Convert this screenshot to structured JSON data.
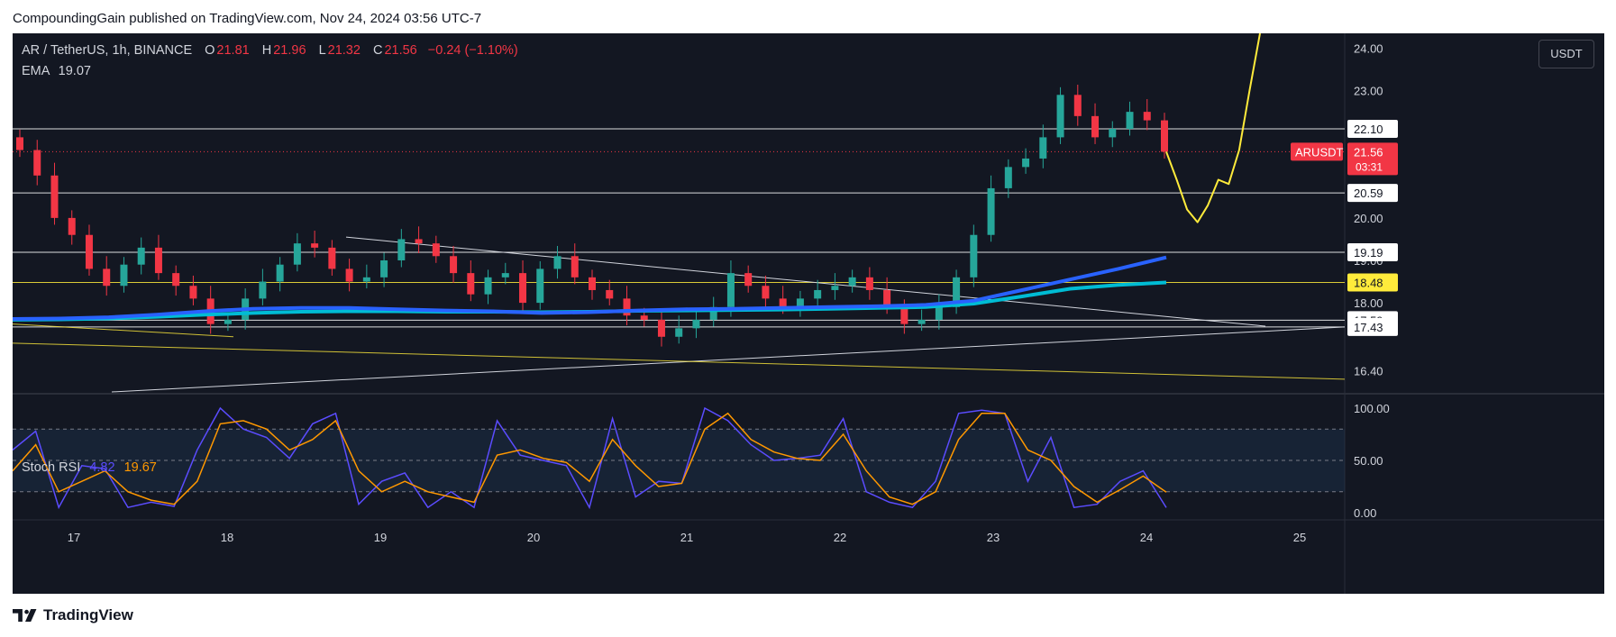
{
  "header": {
    "published": "CompoundingGain published on TradingView.com, Nov 24, 2024 03:56 UTC-7"
  },
  "legend": {
    "symbol": "AR / TetherUS, 1h, BINANCE",
    "o_label": "O",
    "o": "21.81",
    "h_label": "H",
    "h": "21.96",
    "l_label": "L",
    "l": "21.32",
    "c_label": "C",
    "c": "21.56",
    "change": "−0.24 (−1.10%)",
    "ema_label": "EMA",
    "ema_value": "19.07"
  },
  "rsi_legend": {
    "label": "Stoch RSI",
    "k": "4.82",
    "d": "19.67"
  },
  "currency_button": "USDT",
  "footer": {
    "brand": "TradingView"
  },
  "colors": {
    "bg": "#131722",
    "up": "#26a69a",
    "down": "#f23645",
    "ema_fast": "#2962ff",
    "ema_slow": "#00bcd4",
    "projection": "#ffeb3b",
    "stoch_k": "#5b4cff",
    "stoch_d": "#ff9800"
  },
  "chart_data": [
    {
      "type": "candlestick",
      "ylim": [
        15.9,
        24.35
      ],
      "x_ticks": [
        "17",
        "18",
        "19",
        "20",
        "21",
        "22",
        "23",
        "24",
        "25"
      ],
      "y_ticks": [
        "24.00",
        "23.00",
        "20.00",
        "19.00",
        "18.00",
        "16.40"
      ],
      "price_lines": [
        {
          "label": "22.10",
          "value": 22.1,
          "color": "#ffffff"
        },
        {
          "label": "20.59",
          "value": 20.59,
          "color": "#ffffff"
        },
        {
          "label": "19.19",
          "value": 19.19,
          "color": "#ffffff"
        },
        {
          "label": "18.48",
          "value": 18.48,
          "color": "#ffeb3b"
        },
        {
          "label": "17.59",
          "value": 17.59,
          "color": "#ffffff"
        },
        {
          "label": "17.43",
          "value": 17.43,
          "color": "#ffffff"
        }
      ],
      "last_price": {
        "symbol": "ARUSDT",
        "value": "21.56",
        "countdown": "03:31"
      },
      "close_approx": [
        21.6,
        21.0,
        20.0,
        19.6,
        18.8,
        18.4,
        18.9,
        19.3,
        18.7,
        18.4,
        18.1,
        17.5,
        17.6,
        18.1,
        18.5,
        18.9,
        19.4,
        19.3,
        18.8,
        18.5,
        18.6,
        19.0,
        19.5,
        19.4,
        19.1,
        18.7,
        18.2,
        18.6,
        18.7,
        18.0,
        18.8,
        19.1,
        18.6,
        18.3,
        18.1,
        17.7,
        17.6,
        17.2,
        17.4,
        17.6,
        17.9,
        18.7,
        18.4,
        18.1,
        17.9,
        18.1,
        18.3,
        18.4,
        18.6,
        18.3,
        17.9,
        17.5,
        17.6,
        17.9,
        18.6,
        19.6,
        20.7,
        21.2,
        21.4,
        21.9,
        22.9,
        22.4,
        21.9,
        22.1,
        22.5,
        22.3,
        21.56
      ],
      "ema": {
        "name": "EMA",
        "values": [
          17.62,
          17.63,
          17.66,
          17.72,
          17.8,
          17.86,
          17.88,
          17.88,
          17.85,
          17.82,
          17.8,
          17.76,
          17.78,
          17.82,
          17.85,
          17.86,
          17.88,
          17.9,
          17.92,
          17.95,
          18.05,
          18.3,
          18.55,
          18.8,
          19.07
        ]
      },
      "ema_slow": {
        "values": [
          17.6,
          17.61,
          17.63,
          17.67,
          17.72,
          17.76,
          17.79,
          17.8,
          17.8,
          17.79,
          17.79,
          17.78,
          17.79,
          17.81,
          17.82,
          17.83,
          17.84,
          17.86,
          17.88,
          17.9,
          17.98,
          18.15,
          18.33,
          18.42,
          18.48
        ]
      },
      "projection": {
        "values": [
          21.56,
          20.9,
          20.2,
          19.9,
          20.3,
          20.9,
          20.8,
          21.6,
          23.0,
          24.35
        ]
      }
    },
    {
      "type": "line",
      "title": "Stoch RSI",
      "ylim": [
        0,
        100
      ],
      "y_ticks": [
        "100.00",
        "50.00",
        "0.00"
      ],
      "bands": [
        80,
        50,
        20
      ],
      "series": [
        {
          "name": "K",
          "values": [
            60,
            78,
            5,
            45,
            42,
            5,
            10,
            6,
            60,
            100,
            80,
            72,
            52,
            85,
            95,
            8,
            30,
            38,
            5,
            20,
            5,
            88,
            55,
            50,
            45,
            5,
            90,
            15,
            30,
            28,
            100,
            88,
            65,
            50,
            52,
            55,
            90,
            20,
            10,
            5,
            30,
            95,
            98,
            95,
            30,
            72,
            5,
            8,
            30,
            40,
            4.82
          ]
        },
        {
          "name": "D",
          "values": [
            40,
            65,
            20,
            30,
            40,
            20,
            12,
            8,
            30,
            85,
            88,
            80,
            60,
            70,
            88,
            40,
            20,
            30,
            20,
            15,
            10,
            55,
            60,
            52,
            48,
            30,
            70,
            45,
            25,
            28,
            80,
            95,
            70,
            58,
            52,
            50,
            75,
            40,
            15,
            8,
            20,
            70,
            95,
            95,
            60,
            50,
            25,
            10,
            22,
            35,
            19.67
          ]
        }
      ]
    }
  ]
}
